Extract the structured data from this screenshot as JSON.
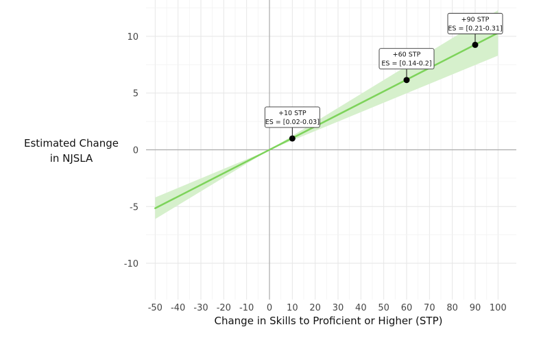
{
  "chart_data": {
    "type": "line",
    "xlabel": "Change in Skills to Proficient or Higher (STP)",
    "ylabel_lines": [
      "Estimated Change",
      "in NJSLA"
    ],
    "xlim": [
      -54,
      108
    ],
    "ylim": [
      -13.2,
      13.2
    ],
    "x_ticks": [
      -50,
      -40,
      -30,
      -20,
      -10,
      0,
      10,
      20,
      30,
      40,
      50,
      60,
      70,
      80,
      90,
      100
    ],
    "y_ticks": [
      10,
      5,
      0,
      -5,
      -10
    ],
    "grid": true,
    "series": [
      {
        "x": [
          -50,
          100
        ],
        "y": [
          -5.15,
          10.3
        ],
        "ci_lower": [
          -6.1,
          8.3
        ],
        "ci_upper": [
          -4.2,
          12.3
        ]
      }
    ],
    "points": [
      {
        "x": 10,
        "y": 1.0,
        "label_line1": "+10 STP",
        "label_line2": "ES = [0.02-0.03]"
      },
      {
        "x": 60,
        "y": 6.15,
        "label_line1": "+60 STP",
        "label_line2": "ES = [0.14-0.2]"
      },
      {
        "x": 90,
        "y": 9.25,
        "label_line1": "+90 STP",
        "label_line2": "ES = [0.21-0.31]"
      }
    ],
    "colors": {
      "line": "#7dd35a",
      "ribbon": "#d6f0cc",
      "point": "#000000",
      "grid": "#e6e6e6",
      "zero_line": "#aaaaaa"
    }
  }
}
